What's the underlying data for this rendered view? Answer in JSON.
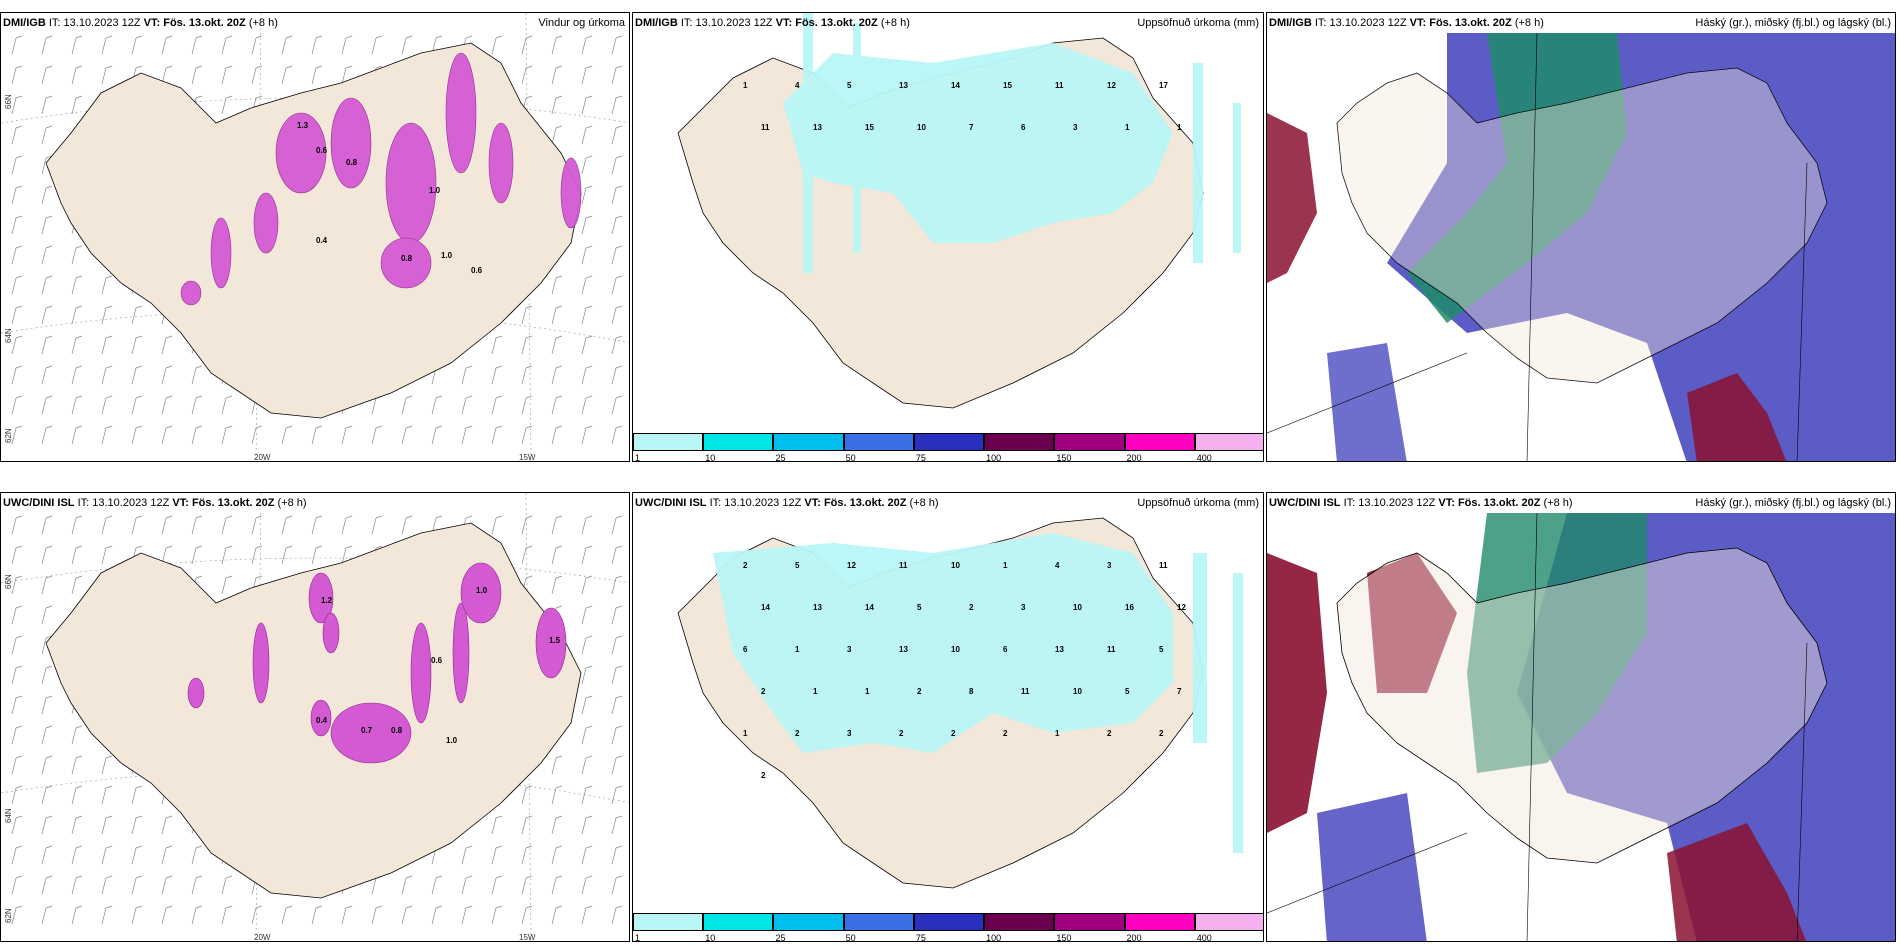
{
  "panels": {
    "top_left": {
      "model": "DMI/IGB",
      "it_label": "IT:",
      "it": "13.10.2023 12Z",
      "vt_label": "VT:",
      "vt": "Fös. 13.okt. 20Z",
      "lead": "(+8 h)",
      "title": "Vindur og úrkoma",
      "lat_labels": [
        "66N",
        "64N",
        "62N"
      ],
      "lon_labels": [
        "20W",
        "15W"
      ]
    },
    "top_mid": {
      "model": "DMI/IGB",
      "it_label": "IT:",
      "it": "13.10.2023 12Z",
      "vt_label": "VT:",
      "vt": "Fös. 13.okt. 20Z",
      "lead": "(+8 h)",
      "title": "Uppsöfnuð úrkoma (mm)"
    },
    "top_right": {
      "model": "DMI/IGB",
      "it_label": "IT:",
      "it": "13.10.2023 12Z",
      "vt_label": "VT:",
      "vt": "Fös. 13.okt. 20Z",
      "lead": "(+8 h)",
      "title": "Háský (gr.), miðský (fj.bl.) og lágský (bl.)"
    },
    "bot_left": {
      "model": "UWC/DINI ISL",
      "it_label": "IT:",
      "it": "13.10.2023 12Z",
      "vt_label": "VT:",
      "vt": "Fös. 13.okt. 20Z",
      "lead": "(+8 h)",
      "title": "",
      "lat_labels": [
        "66N",
        "64N",
        "62N"
      ],
      "lon_labels": [
        "20W",
        "15W"
      ]
    },
    "bot_mid": {
      "model": "UWC/DINI ISL",
      "it_label": "IT:",
      "it": "13.10.2023 12Z",
      "vt_label": "VT:",
      "vt": "Fös. 13.okt. 20Z",
      "lead": "(+8 h)",
      "title": "Uppsöfnuð úrkoma (mm)"
    },
    "bot_right": {
      "model": "UWC/DINI ISL",
      "it_label": "IT:",
      "it": "13.10.2023 12Z",
      "vt_label": "VT:",
      "vt": "Fös. 13.okt. 20Z",
      "lead": "(+8 h)",
      "title": "Háský (gr.), miðský (fj.bl.) og lágský (bl.)"
    }
  },
  "precip_colorbar": {
    "labels": [
      "1",
      "10",
      "25",
      "50",
      "75",
      "100",
      "150",
      "200",
      "400"
    ],
    "colors": [
      "#b9f6f6",
      "#00e6e6",
      "#00bfef",
      "#3a6fe8",
      "#2a2fbf",
      "#6b0050",
      "#a00080",
      "#ff00c0",
      "#f5b0f0"
    ]
  },
  "top_mid_numbers": [
    "1",
    "4",
    "5",
    "13",
    "14",
    "15",
    "11",
    "12",
    "17",
    "11",
    "13",
    "15",
    "10",
    "7",
    "6",
    "3",
    "1",
    "1"
  ],
  "bot_mid_numbers": [
    "2",
    "5",
    "12",
    "11",
    "10",
    "1",
    "4",
    "3",
    "11",
    "14",
    "13",
    "14",
    "5",
    "2",
    "3",
    "10",
    "16",
    "12",
    "6",
    "1",
    "3",
    "13",
    "10",
    "6",
    "13",
    "11",
    "5",
    "2",
    "1",
    "1",
    "2",
    "8",
    "11",
    "10",
    "5",
    "7",
    "1",
    "2",
    "3",
    "2",
    "2",
    "2",
    "1",
    "2",
    "2",
    "2"
  ],
  "top_left_values": [
    "1.3",
    "0.8",
    "0.6",
    "1.0",
    "0.4",
    "0.8",
    "1.0",
    "0.6"
  ],
  "bot_left_values": [
    "1.0",
    "1.2",
    "0.4",
    "0.7",
    "0.8",
    "1.0",
    "0.6",
    "1.5"
  ],
  "colors": {
    "land": "#f3e7da",
    "precip_light": "#b9f6f6",
    "magenta": "#d45ad4",
    "cloud_high": "#1f8a6a",
    "cloud_mid": "#4a4ac0",
    "cloud_low": "#8a1030"
  }
}
